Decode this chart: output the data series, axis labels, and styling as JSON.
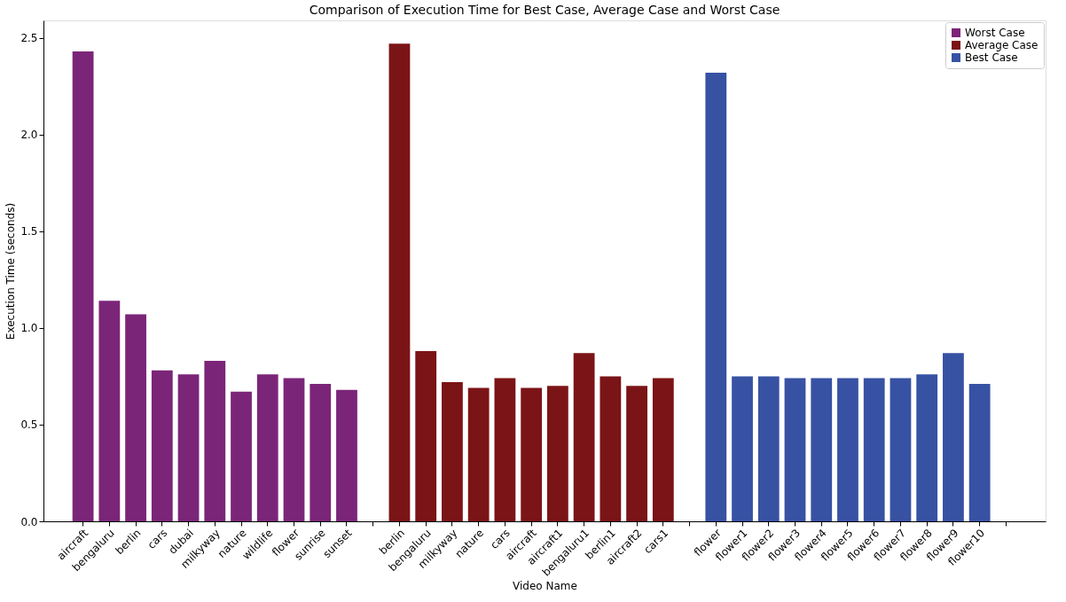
{
  "chart_data": {
    "type": "bar",
    "title": "Comparison of Execution Time for Best Case, Average Case and Worst Case",
    "xlabel": "Video Name",
    "ylabel": "Execution Time (seconds)",
    "categories": [
      "aircraft",
      "bengaluru",
      "berlin",
      "cars",
      "dubai",
      "milkyway",
      "nature",
      "wildlife",
      "flower",
      "sunrise",
      "sunset",
      null,
      "berlin",
      "bengaluru",
      "milkyway",
      "nature",
      "cars",
      "aircraft",
      "aircraft1",
      "bengaluru1",
      "berlin1",
      "aircraft2",
      "cars1",
      null,
      "flower",
      "flower1",
      "flower2",
      "flower3",
      "flower4",
      "flower5",
      "flower6",
      "flower7",
      "flower8",
      "flower9",
      "flower10",
      null
    ],
    "series": [
      {
        "name": "Worst Case",
        "color": "#7b2579",
        "values": [
          2.43,
          1.14,
          1.07,
          0.78,
          0.76,
          0.83,
          0.67,
          0.76,
          0.74,
          0.71,
          0.68,
          null,
          null,
          null,
          null,
          null,
          null,
          null,
          null,
          null,
          null,
          null,
          null,
          null,
          null,
          null,
          null,
          null,
          null,
          null,
          null,
          null,
          null,
          null,
          null,
          null
        ]
      },
      {
        "name": "Average Case",
        "color": "#7b1416",
        "values": [
          null,
          null,
          null,
          null,
          null,
          null,
          null,
          null,
          null,
          null,
          null,
          null,
          2.47,
          0.88,
          0.72,
          0.69,
          0.74,
          0.69,
          0.7,
          0.87,
          0.75,
          0.7,
          0.74,
          null,
          null,
          null,
          null,
          null,
          null,
          null,
          null,
          null,
          null,
          null,
          null,
          null
        ]
      },
      {
        "name": "Best Case",
        "color": "#3752a3",
        "values": [
          null,
          null,
          null,
          null,
          null,
          null,
          null,
          null,
          null,
          null,
          null,
          null,
          null,
          null,
          null,
          null,
          null,
          null,
          null,
          null,
          null,
          null,
          null,
          null,
          2.32,
          0.75,
          0.75,
          0.74,
          0.74,
          0.74,
          0.74,
          0.74,
          0.76,
          0.87,
          0.71,
          null
        ]
      }
    ],
    "ylim": [
      0,
      2.59
    ],
    "yticks": [
      {
        "value": 0,
        "label": "0.0"
      },
      {
        "value": 0.5,
        "label": "0.5"
      },
      {
        "value": 1.0,
        "label": "1.0"
      },
      {
        "value": 1.5,
        "label": "1.5"
      },
      {
        "value": 2.0,
        "label": "2.0"
      },
      {
        "value": 2.5,
        "label": "2.5"
      }
    ],
    "grid": false,
    "legend": "top right"
  }
}
